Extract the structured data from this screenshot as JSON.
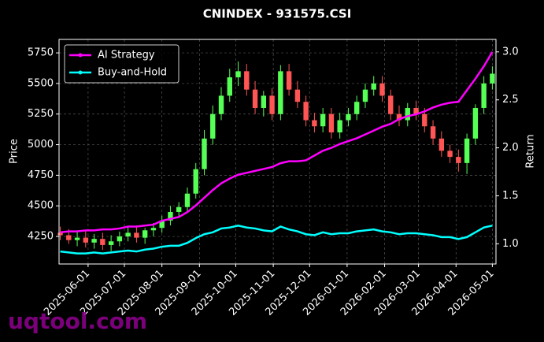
{
  "chart_data": {
    "type": "candlestick",
    "title": "CNINDEX - 931575.CSI",
    "ylabel": "Price",
    "y2label": "Return",
    "watermark": "uqtool.com",
    "x": [
      "2025-05-09",
      "2025-05-16",
      "2025-05-23",
      "2025-05-30",
      "2025-06-06",
      "2025-06-13",
      "2025-06-20",
      "2025-06-27",
      "2025-07-04",
      "2025-07-11",
      "2025-07-18",
      "2025-07-25",
      "2025-08-01",
      "2025-08-08",
      "2025-08-15",
      "2025-08-22",
      "2025-08-29",
      "2025-09-05",
      "2025-09-12",
      "2025-09-19",
      "2025-09-26",
      "2025-10-03",
      "2025-10-10",
      "2025-10-17",
      "2025-10-24",
      "2025-10-31",
      "2025-11-07",
      "2025-11-14",
      "2025-11-21",
      "2025-11-28",
      "2025-12-05",
      "2025-12-12",
      "2025-12-19",
      "2025-12-26",
      "2026-01-02",
      "2026-01-09",
      "2026-01-16",
      "2026-01-23",
      "2026-01-30",
      "2026-02-06",
      "2026-02-13",
      "2026-02-20",
      "2026-02-27",
      "2026-03-06",
      "2026-03-13",
      "2026-03-20",
      "2026-03-27",
      "2026-04-03",
      "2026-04-10",
      "2026-04-17",
      "2026-04-24",
      "2026-05-01"
    ],
    "open": [
      4280,
      4260,
      4220,
      4240,
      4200,
      4230,
      4180,
      4210,
      4250,
      4280,
      4240,
      4300,
      4320,
      4380,
      4450,
      4490,
      4600,
      4800,
      5050,
      5250,
      5400,
      5550,
      5600,
      5450,
      5300,
      5400,
      5250,
      5600,
      5450,
      5350,
      5200,
      5150,
      5250,
      5100,
      5200,
      5250,
      5350,
      5450,
      5500,
      5400,
      5250,
      5200,
      5300,
      5250,
      5150,
      5050,
      4950,
      4900,
      4850,
      5050,
      5300,
      5500
    ],
    "high": [
      4330,
      4310,
      4290,
      4300,
      4270,
      4280,
      4260,
      4290,
      4330,
      4340,
      4320,
      4360,
      4420,
      4500,
      4530,
      4650,
      4850,
      5120,
      5320,
      5470,
      5620,
      5680,
      5660,
      5520,
      5440,
      5460,
      5650,
      5660,
      5520,
      5400,
      5260,
      5300,
      5300,
      5260,
      5300,
      5400,
      5500,
      5560,
      5560,
      5450,
      5320,
      5340,
      5360,
      5300,
      5200,
      5110,
      5000,
      4960,
      5090,
      5330,
      5560,
      5640
    ],
    "low": [
      4220,
      4190,
      4170,
      4160,
      4150,
      4140,
      4130,
      4170,
      4210,
      4200,
      4190,
      4250,
      4280,
      4340,
      4410,
      4450,
      4560,
      4750,
      5000,
      5200,
      5350,
      5480,
      5400,
      5250,
      5230,
      5200,
      5200,
      5400,
      5300,
      5150,
      5100,
      5100,
      5050,
      5050,
      5150,
      5200,
      5300,
      5400,
      5350,
      5200,
      5150,
      5150,
      5200,
      5100,
      5000,
      4900,
      4850,
      4780,
      4760,
      5000,
      5250,
      5450
    ],
    "close": [
      4260,
      4220,
      4240,
      4200,
      4230,
      4180,
      4210,
      4250,
      4280,
      4240,
      4300,
      4320,
      4380,
      4450,
      4490,
      4600,
      4800,
      5050,
      5250,
      5400,
      5550,
      5600,
      5450,
      5300,
      5400,
      5250,
      5600,
      5450,
      5350,
      5200,
      5150,
      5250,
      5100,
      5200,
      5250,
      5350,
      5450,
      5500,
      5400,
      5250,
      5200,
      5300,
      5250,
      5150,
      5050,
      4950,
      4900,
      4850,
      5050,
      5300,
      5500,
      5580
    ],
    "up_color": "#55ff55",
    "down_color": "#ff5555",
    "series": [
      {
        "name": "AI Strategy",
        "color": "#ff00ff",
        "axis": "y2",
        "values": [
          1.12,
          1.13,
          1.13,
          1.14,
          1.14,
          1.15,
          1.15,
          1.16,
          1.18,
          1.18,
          1.19,
          1.2,
          1.24,
          1.26,
          1.28,
          1.33,
          1.4,
          1.48,
          1.56,
          1.63,
          1.68,
          1.72,
          1.74,
          1.76,
          1.78,
          1.8,
          1.84,
          1.86,
          1.86,
          1.87,
          1.92,
          1.97,
          2.0,
          2.04,
          2.07,
          2.1,
          2.14,
          2.18,
          2.22,
          2.25,
          2.3,
          2.33,
          2.35,
          2.38,
          2.42,
          2.45,
          2.47,
          2.48,
          2.6,
          2.72,
          2.85,
          3.0
        ]
      },
      {
        "name": "Buy-and-Hold",
        "color": "#00ffff",
        "axis": "y2",
        "values": [
          0.92,
          0.91,
          0.9,
          0.9,
          0.91,
          0.9,
          0.91,
          0.92,
          0.93,
          0.92,
          0.94,
          0.95,
          0.97,
          0.98,
          0.98,
          1.01,
          1.06,
          1.1,
          1.12,
          1.16,
          1.17,
          1.19,
          1.17,
          1.16,
          1.14,
          1.13,
          1.18,
          1.15,
          1.13,
          1.1,
          1.09,
          1.12,
          1.1,
          1.11,
          1.11,
          1.13,
          1.14,
          1.15,
          1.13,
          1.12,
          1.1,
          1.11,
          1.11,
          1.1,
          1.09,
          1.07,
          1.07,
          1.05,
          1.07,
          1.12,
          1.17,
          1.19
        ]
      }
    ],
    "xlim": [
      "2025-05-08",
      "2026-05-04"
    ],
    "xticks": [
      "2025-06-01",
      "2025-07-01",
      "2025-08-01",
      "2025-09-01",
      "2025-10-01",
      "2025-11-01",
      "2025-12-01",
      "2026-01-01",
      "2026-02-01",
      "2026-03-01",
      "2026-04-01",
      "2026-05-01"
    ],
    "ylim": [
      4025,
      5860
    ],
    "yticks": [
      4250,
      4500,
      4750,
      5000,
      5250,
      5500,
      5750
    ],
    "y2lim": [
      0.79,
      3.13
    ],
    "y2ticks": [
      {
        "value": 1,
        "label": "1.0"
      },
      {
        "value": 1.5,
        "label": "1.5"
      },
      {
        "value": 2,
        "label": "2.0"
      },
      {
        "value": 2.5,
        "label": "2.5"
      },
      {
        "value": 3,
        "label": "3.0"
      }
    ],
    "grid": true,
    "legend": "upper left"
  }
}
